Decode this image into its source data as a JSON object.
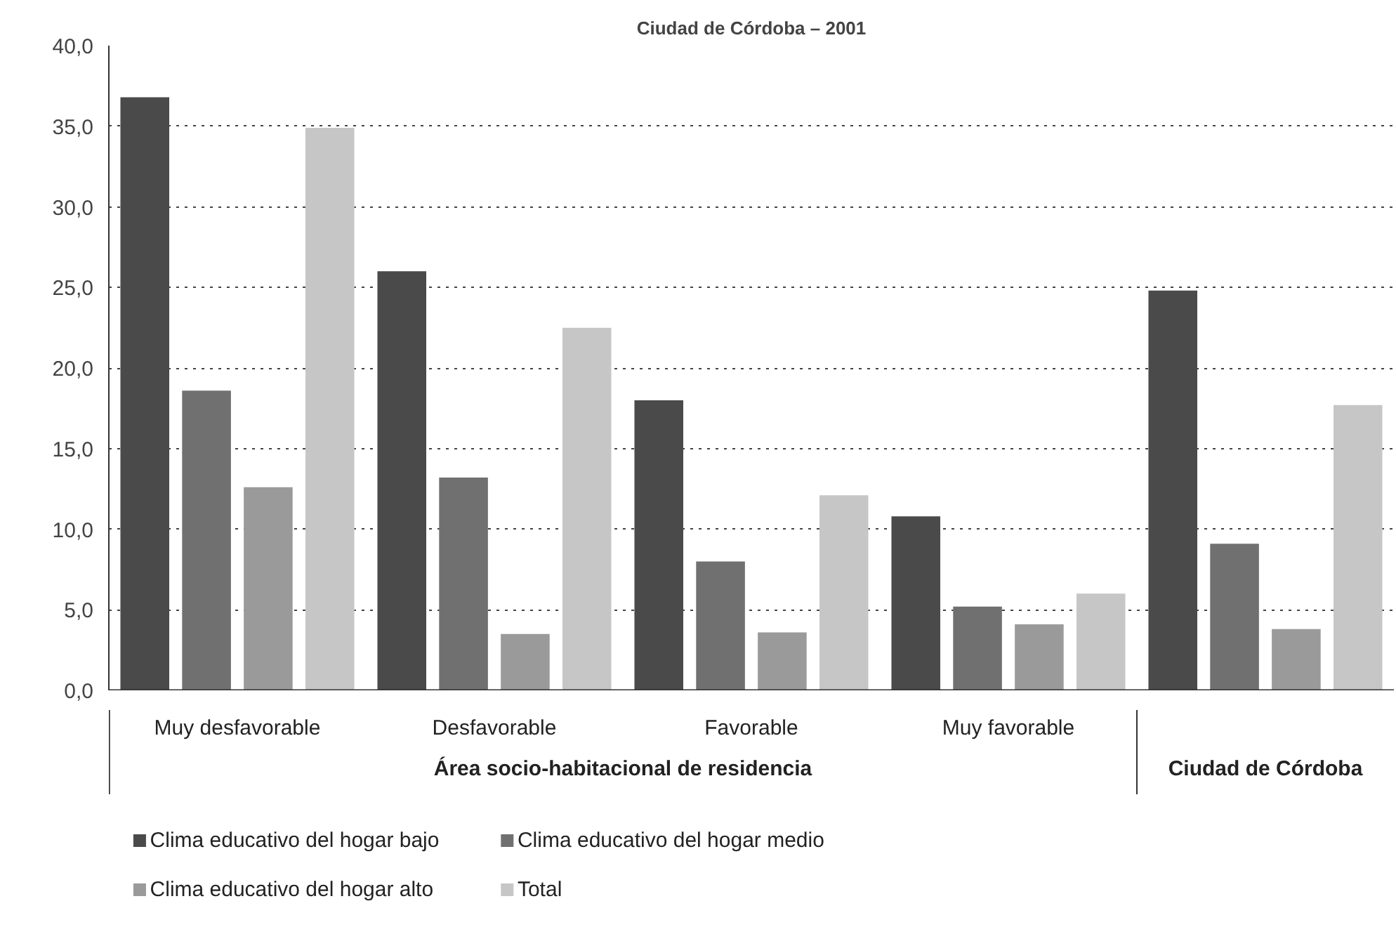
{
  "chart_data": {
    "type": "bar",
    "title": "Ciudad de Córdoba – 2001",
    "categories": [
      "Muy desfavorable",
      "Desfavorable",
      "Favorable",
      "Muy favorable",
      null
    ],
    "series": [
      {
        "name": "Clima educativo del hogar bajo",
        "color": "#4a4a4a",
        "values": [
          36.8,
          26.0,
          18.0,
          10.8,
          24.8
        ]
      },
      {
        "name": "Clima educativo del hogar medio",
        "color": "#707070",
        "values": [
          18.6,
          13.2,
          8.0,
          5.2,
          9.1
        ]
      },
      {
        "name": "Clima educativo del hogar alto",
        "color": "#9a9a9a",
        "values": [
          12.6,
          3.5,
          3.6,
          4.1,
          3.8
        ]
      },
      {
        "name": "Total",
        "color": "#c6c6c6",
        "values": [
          34.9,
          22.5,
          12.1,
          6.0,
          17.7
        ]
      }
    ],
    "annotations": [
      "Área socio-habitacional de residencia",
      "Ciudad de Córdoba"
    ],
    "ylim": [
      0,
      40
    ],
    "yticks": [
      {
        "value": 0,
        "label": "0,0"
      },
      {
        "value": 5,
        "label": "5,0"
      },
      {
        "value": 10,
        "label": "10,0"
      },
      {
        "value": 15,
        "label": "15,0"
      },
      {
        "value": 20,
        "label": "20,0"
      },
      {
        "value": 25,
        "label": "25,0"
      },
      {
        "value": 30,
        "label": "30,0"
      },
      {
        "value": 35,
        "label": "35,0"
      },
      {
        "value": 40,
        "label": "40,0"
      }
    ],
    "grid": "y",
    "legend": "bottom"
  }
}
